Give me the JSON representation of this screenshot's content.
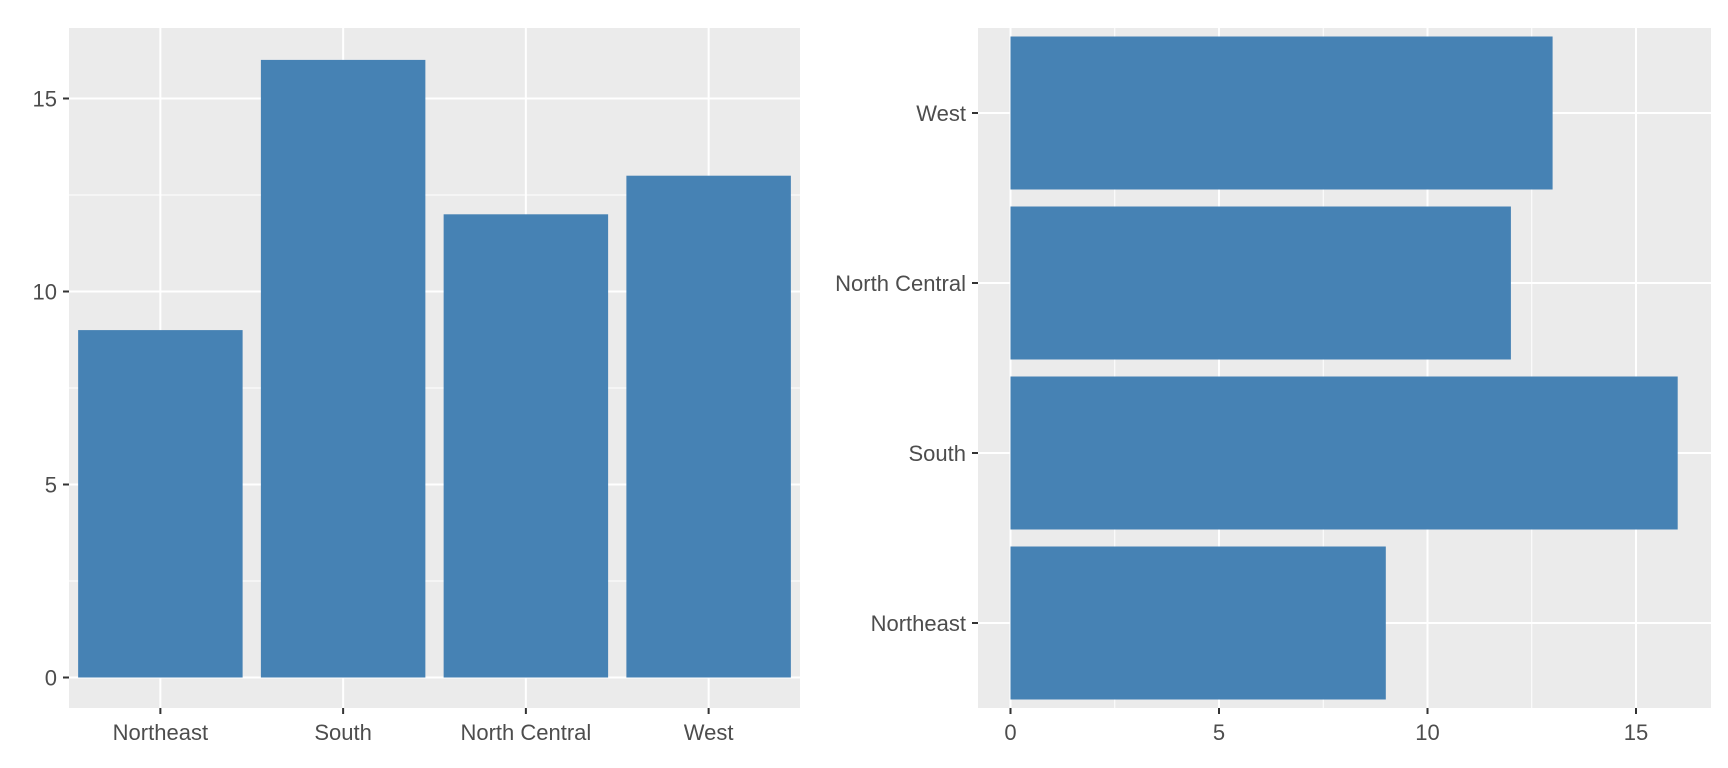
{
  "chart_data": [
    {
      "type": "bar",
      "orientation": "vertical",
      "categories": [
        "Northeast",
        "South",
        "North Central",
        "West"
      ],
      "values": [
        9,
        16,
        12,
        13
      ],
      "title": "",
      "xlabel": "",
      "ylabel": "",
      "ylim": [
        0,
        16.8
      ],
      "yticks": [
        0,
        5,
        10,
        15
      ],
      "grid": true,
      "bar_color": "#4682B4",
      "panel_background": "#EBEBEB",
      "grid_color": "#FFFFFF"
    },
    {
      "type": "bar",
      "orientation": "horizontal",
      "categories": [
        "Northeast",
        "South",
        "North Central",
        "West"
      ],
      "values": [
        9,
        16,
        12,
        13
      ],
      "title": "",
      "xlabel": "",
      "ylabel": "",
      "xlim": [
        0,
        16.8
      ],
      "xticks": [
        0,
        5,
        10,
        15
      ],
      "grid": true,
      "bar_color": "#4682B4",
      "panel_background": "#EBEBEB",
      "grid_color": "#FFFFFF"
    }
  ]
}
